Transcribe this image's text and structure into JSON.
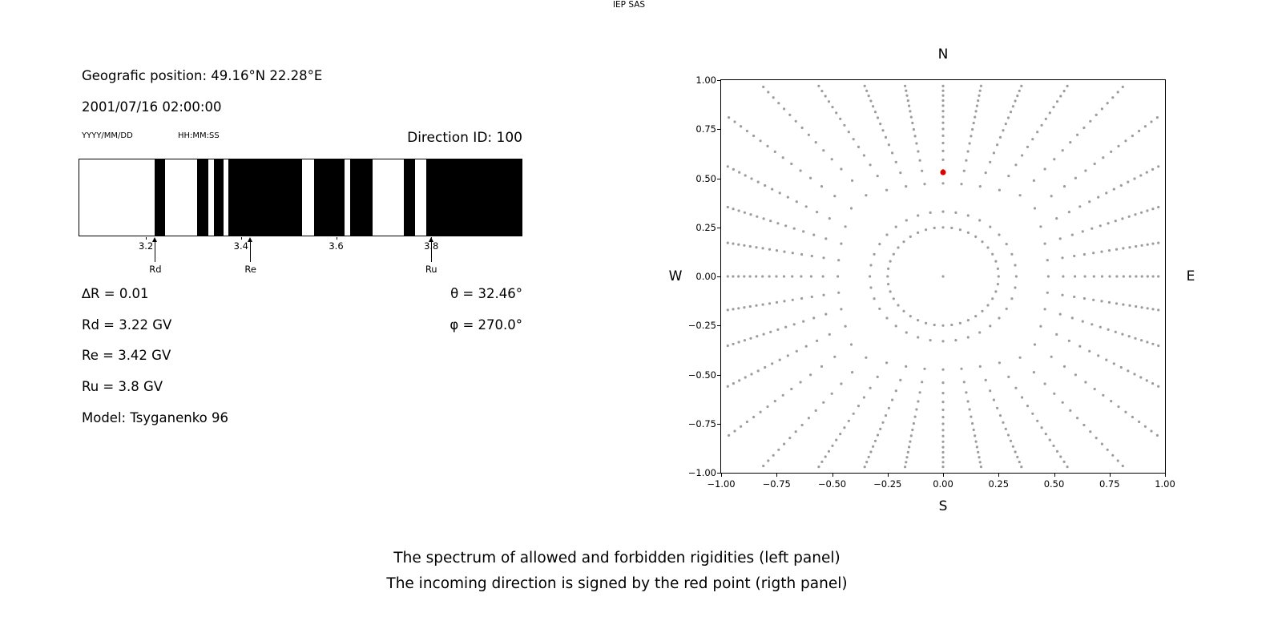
{
  "captions": {
    "line1": "The spectrum of allowed and forbidden rigidities (left panel)",
    "line2": "The incoming direction is signed by the red point (rigth panel)",
    "credit": "IEP SAS"
  },
  "left_panel": {
    "geographic_position": "Geografic position: 49.16°N 22.28°E",
    "datetime": "2001/07/16 02:00:00",
    "date_format_label": "YYYY/MM/DD",
    "time_format_label": "HH:MM:SS",
    "direction_id": "Direction ID: 100",
    "stats_left": [
      "∆R = 0.01",
      "Rd = 3.22 GV",
      "Re = 3.42 GV",
      "Ru = 3.8 GV",
      "Model: Tsyganenko 96"
    ],
    "stats_right": [
      "θ = 32.46°",
      "φ = 270.0°"
    ]
  },
  "chart_data": [
    {
      "id": "rigidity_spectrum",
      "type": "bar",
      "description": "Barcode-style spectrum of allowed (black) and forbidden (white) rigidities",
      "xlim": [
        3.06,
        3.99
      ],
      "xticks": [
        3.2,
        3.4,
        3.6,
        3.8
      ],
      "tick_decimals": 1,
      "bar_color": "#000000",
      "background": "#ffffff",
      "black_intervals_gv": [
        [
          3.218,
          3.24
        ],
        [
          3.308,
          3.332
        ],
        [
          3.343,
          3.363
        ],
        [
          3.373,
          3.528
        ],
        [
          3.554,
          3.617
        ],
        [
          3.629,
          3.676
        ],
        [
          3.742,
          3.766
        ],
        [
          3.79,
          3.99
        ]
      ],
      "markers": [
        {
          "label": "Rd",
          "x": 3.22
        },
        {
          "label": "Re",
          "x": 3.42
        },
        {
          "label": "Ru",
          "x": 3.8
        }
      ]
    },
    {
      "id": "incoming_direction",
      "type": "scatter",
      "description": "Direction map: gray dots form 36 radial spokes (denser toward outer tips), an inner dotted ring and a center dot; red point marks the incoming direction",
      "xlim": [
        -1.0,
        1.0
      ],
      "ylim": [
        -1.0,
        1.0
      ],
      "xticks": [
        -1.0,
        -0.75,
        -0.5,
        -0.25,
        0.0,
        0.25,
        0.5,
        0.75,
        1.0
      ],
      "yticks": [
        -1.0,
        -0.75,
        -0.5,
        -0.25,
        0.0,
        0.25,
        0.5,
        0.75,
        1.0
      ],
      "tick_decimals": 2,
      "grid": false,
      "compass_labels": {
        "top": "N",
        "right": "E",
        "bottom": "S",
        "left": "W"
      },
      "gray_dots": {
        "color": "#9c9c9c",
        "marker_size_px": 1.6,
        "n_spokes": 36,
        "angle_step_deg": 10,
        "r_min": 0.33,
        "edge_limit": 0.97,
        "r_cap": 1.26,
        "points_per_spoke": 16,
        "density_exponent": 0.55,
        "inner_ring_radius": 0.25,
        "inner_ring_points": 40,
        "center_dot": true
      },
      "red_point": {
        "x": 0.0,
        "y": 0.53,
        "color": "#dd0000",
        "marker_size_px": 3.5
      }
    }
  ]
}
